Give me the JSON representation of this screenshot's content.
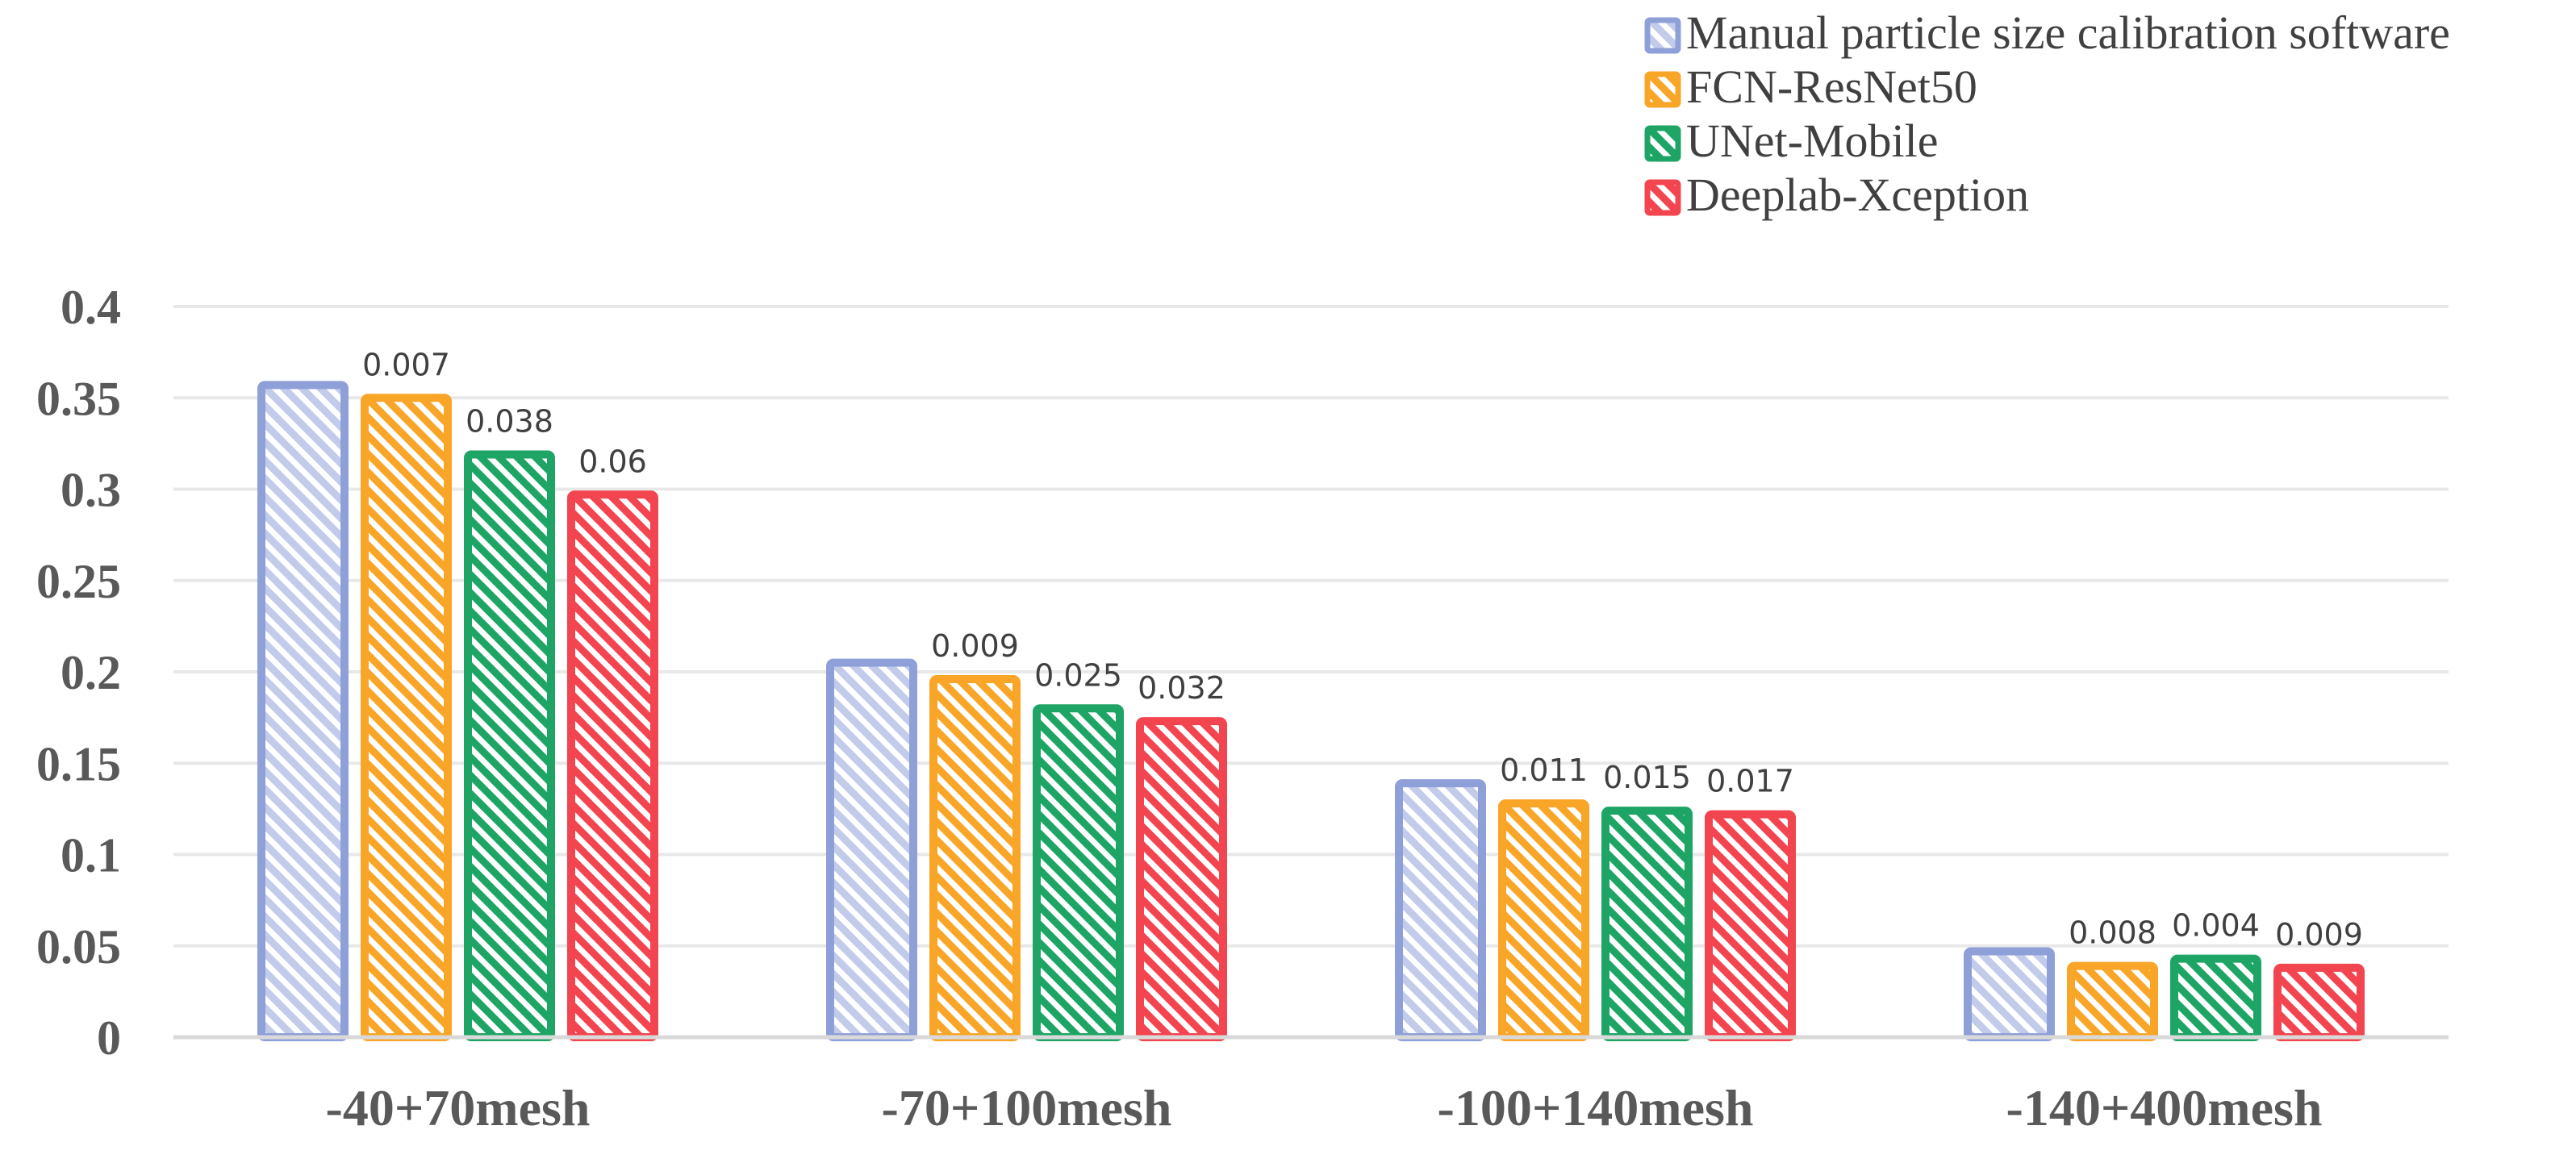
{
  "chart_data": {
    "type": "bar",
    "categories": [
      "-40+70mesh",
      "-70+100mesh",
      "-100+140mesh",
      "-140+400mesh"
    ],
    "series": [
      {
        "name": "Manual particle size calibration software",
        "color": "#8FA0D8",
        "values": [
          0.357,
          0.205,
          0.139,
          0.047
        ],
        "labels": [
          "",
          "",
          "",
          ""
        ]
      },
      {
        "name": "FCN-ResNet50",
        "color": "#F8A528",
        "values": [
          0.35,
          0.196,
          0.128,
          0.039
        ],
        "labels": [
          "0.007",
          "0.009",
          "0.011",
          "0.008"
        ]
      },
      {
        "name": "UNet-Mobile",
        "color": "#1EA566",
        "values": [
          0.319,
          0.18,
          0.124,
          0.043
        ],
        "labels": [
          "0.038",
          "0.025",
          "0.015",
          "0.004"
        ]
      },
      {
        "name": "Deeplab-Xception",
        "color": "#F2454F",
        "values": [
          0.297,
          0.173,
          0.122,
          0.038
        ],
        "labels": [
          "0.06",
          "0.032",
          "0.017",
          "0.009"
        ]
      }
    ],
    "y_ticks": [
      "0",
      "0.05",
      "0.1",
      "0.15",
      "0.2",
      "0.25",
      "0.3",
      "0.35",
      "0.4"
    ],
    "ylim": [
      0,
      0.4
    ],
    "grid": true,
    "legend_position": "top-right",
    "title": "",
    "xlabel": "",
    "ylabel": ""
  }
}
